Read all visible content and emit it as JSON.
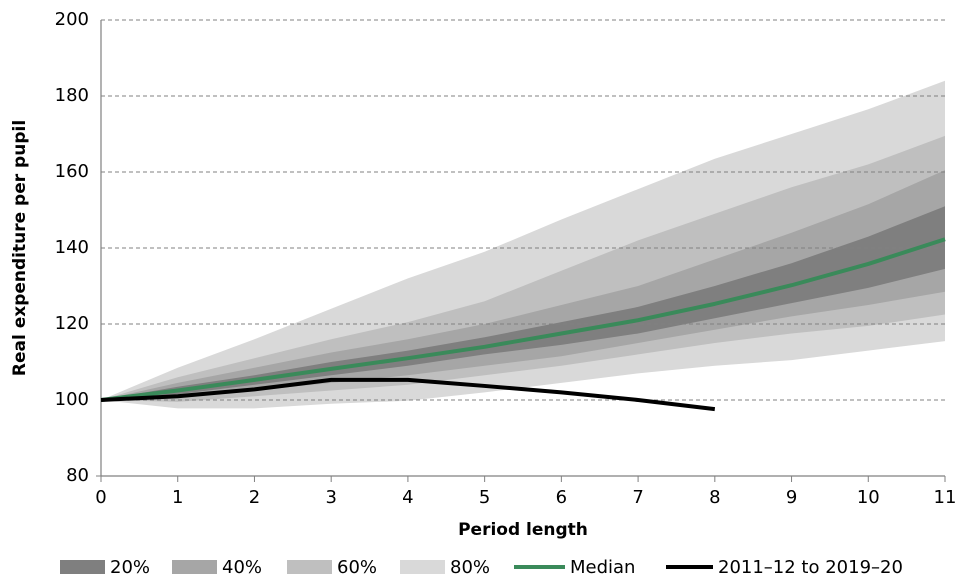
{
  "chart_data": {
    "type": "fan",
    "x_label": "Period length",
    "y_label": "Real expenditure per pupil",
    "x": [
      0,
      1,
      2,
      3,
      4,
      5,
      6,
      7,
      8,
      9,
      10,
      11
    ],
    "xlim": [
      0,
      11
    ],
    "xticks": [
      0,
      1,
      2,
      3,
      4,
      5,
      6,
      7,
      8,
      9,
      10,
      11
    ],
    "ylim": [
      80,
      200
    ],
    "yticks": [
      80,
      100,
      120,
      140,
      160,
      180,
      200
    ],
    "grid": true,
    "legend": "bottom",
    "bands": [
      {
        "name": "20%",
        "color": "#7f7f7f",
        "upper": [
          100,
          103.5,
          106.5,
          110,
          113,
          116.5,
          120.5,
          124.5,
          130,
          136,
          143,
          151
        ],
        "lower": [
          100,
          101.5,
          104,
          106.5,
          109,
          112,
          114.5,
          117.5,
          121.5,
          125.5,
          129.5,
          134.5
        ]
      },
      {
        "name": "40%",
        "color": "#a6a6a6",
        "upper": [
          100,
          104.5,
          108.5,
          112.5,
          116,
          120,
          125,
          130,
          137,
          144,
          151.5,
          160.5
        ],
        "lower": [
          100,
          100.5,
          102.5,
          104.5,
          106.5,
          109,
          111.5,
          115,
          118.5,
          122,
          125,
          128.5
        ]
      },
      {
        "name": "60%",
        "color": "#bfbfbf",
        "upper": [
          100,
          106,
          111,
          116,
          120.5,
          126,
          134,
          142,
          149,
          156,
          162,
          169.5
        ],
        "lower": [
          100,
          99.5,
          101,
          102.5,
          104,
          106.5,
          109,
          112,
          115,
          117.5,
          119.5,
          122.5
        ]
      },
      {
        "name": "80%",
        "color": "#d9d9d9",
        "upper": [
          100,
          108.5,
          116,
          124,
          132,
          139,
          147.5,
          155.5,
          163.5,
          170,
          176.5,
          184
        ],
        "lower": [
          100,
          97.8,
          97.8,
          99,
          99.8,
          102,
          104.5,
          107,
          109,
          110.5,
          113,
          115.5
        ]
      }
    ],
    "series": [
      {
        "name": "Median",
        "color": "#3a8a5a",
        "values": [
          100,
          102.5,
          105.3,
          108.2,
          111,
          114,
          117.5,
          121,
          125.3,
          130.2,
          135.8,
          142.3
        ]
      },
      {
        "name": "2011–12 to 2019–20",
        "color": "#000000",
        "values": [
          100,
          101,
          102.8,
          105.3,
          105.3,
          103.7,
          102,
          100,
          97.6,
          null,
          null,
          null
        ]
      }
    ]
  }
}
